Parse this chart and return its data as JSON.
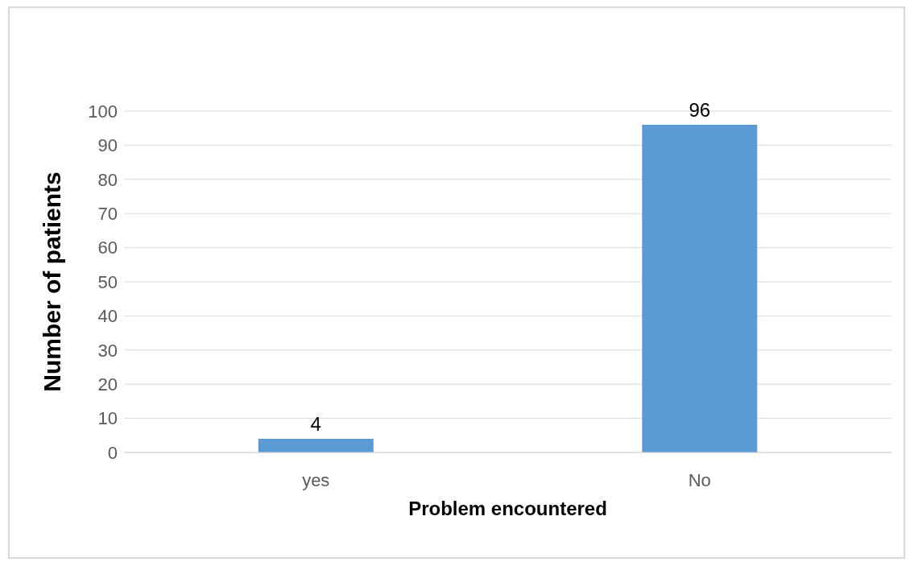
{
  "chart_data": {
    "type": "bar",
    "xlabel": "Problem encountered",
    "ylabel": "Number of patients",
    "categories": [
      "yes",
      "No"
    ],
    "values": [
      4,
      96
    ],
    "color": "#5b9bd5",
    "ylim": [
      0,
      100
    ],
    "yticks": [
      0,
      10,
      20,
      30,
      40,
      50,
      60,
      70,
      80,
      90,
      100
    ],
    "grid": "y",
    "data_labels": true
  }
}
